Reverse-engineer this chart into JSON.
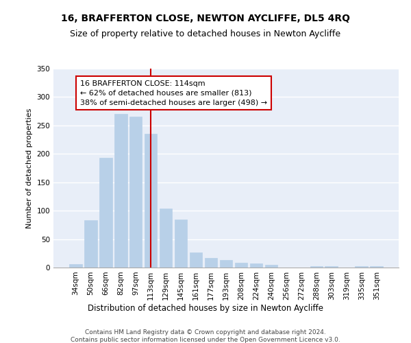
{
  "title": "16, BRAFFERTON CLOSE, NEWTON AYCLIFFE, DL5 4RQ",
  "subtitle": "Size of property relative to detached houses in Newton Aycliffe",
  "xlabel": "Distribution of detached houses by size in Newton Aycliffe",
  "ylabel": "Number of detached properties",
  "categories": [
    "34sqm",
    "50sqm",
    "66sqm",
    "82sqm",
    "97sqm",
    "113sqm",
    "129sqm",
    "145sqm",
    "161sqm",
    "177sqm",
    "193sqm",
    "208sqm",
    "224sqm",
    "240sqm",
    "256sqm",
    "272sqm",
    "288sqm",
    "303sqm",
    "319sqm",
    "335sqm",
    "351sqm"
  ],
  "values": [
    6,
    83,
    193,
    270,
    265,
    235,
    104,
    85,
    27,
    17,
    13,
    9,
    7,
    5,
    0,
    0,
    3,
    2,
    0,
    3,
    2
  ],
  "bar_color": "#b8d0e8",
  "bar_edgecolor": "#b8d0e8",
  "annotation_text": "16 BRAFFERTON CLOSE: 114sqm\n← 62% of detached houses are smaller (813)\n38% of semi-detached houses are larger (498) →",
  "annotation_box_color": "#ffffff",
  "annotation_box_edgecolor": "#cc0000",
  "vline_color": "#cc0000",
  "vline_x_index": 5.0,
  "ylim": [
    0,
    350
  ],
  "yticks": [
    0,
    50,
    100,
    150,
    200,
    250,
    300,
    350
  ],
  "background_color": "#e8eef8",
  "footer_line1": "Contains HM Land Registry data © Crown copyright and database right 2024.",
  "footer_line2": "Contains public sector information licensed under the Open Government Licence v3.0.",
  "title_fontsize": 10,
  "subtitle_fontsize": 9,
  "xlabel_fontsize": 8.5,
  "ylabel_fontsize": 8,
  "tick_fontsize": 7.5,
  "annotation_fontsize": 8,
  "footer_fontsize": 6.5
}
